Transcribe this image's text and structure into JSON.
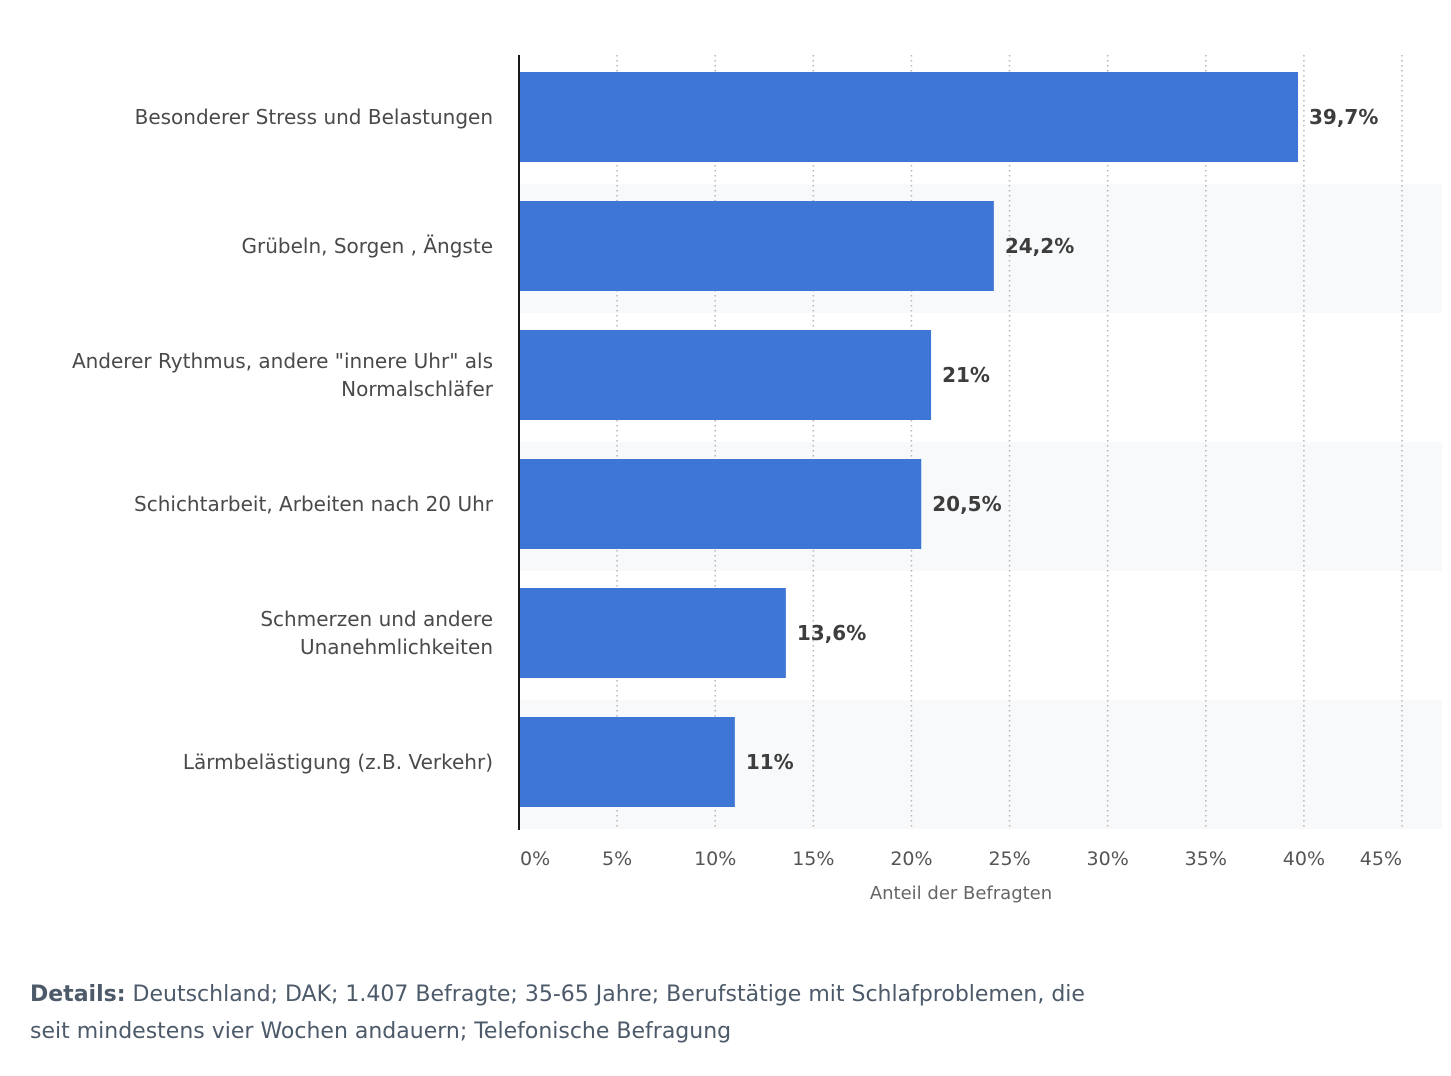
{
  "chart_data": {
    "type": "bar",
    "orientation": "horizontal",
    "categories": [
      [
        "Besonderer Stress und Belastungen"
      ],
      [
        "Grübeln, Sorgen , Ängste"
      ],
      [
        "Anderer Rythmus, andere \"innere Uhr\" als",
        "Normalschläfer"
      ],
      [
        "Schichtarbeit, Arbeiten nach 20 Uhr"
      ],
      [
        "Schmerzen und andere",
        "Unanehmlichkeiten"
      ],
      [
        "Lärmbelästigung (z.B. Verkehr)"
      ]
    ],
    "values": [
      39.7,
      24.2,
      21,
      20.5,
      13.6,
      11
    ],
    "value_labels": [
      "39,7%",
      "24,2%",
      "21%",
      "20,5%",
      "13,6%",
      "11%"
    ],
    "xlim": [
      0,
      45
    ],
    "xticks": [
      0,
      5,
      10,
      15,
      20,
      25,
      30,
      35,
      40,
      45
    ],
    "xtick_labels": [
      "0%",
      "5%",
      "10%",
      "15%",
      "20%",
      "25%",
      "30%",
      "35%",
      "40%",
      "45%"
    ],
    "xlabel": "Anteil der Befragten",
    "grid": "vertical dotted",
    "bar_color": "#3e76d5",
    "band_color": "#f8f9fa"
  },
  "details": {
    "label": "Details:",
    "text": "Deutschland; DAK; 1.407 Befragte; 35-65 Jahre; Berufstätige mit Schlafproblemen, die seit mindestens vier Wochen andauern; Telefonische Befragung"
  }
}
